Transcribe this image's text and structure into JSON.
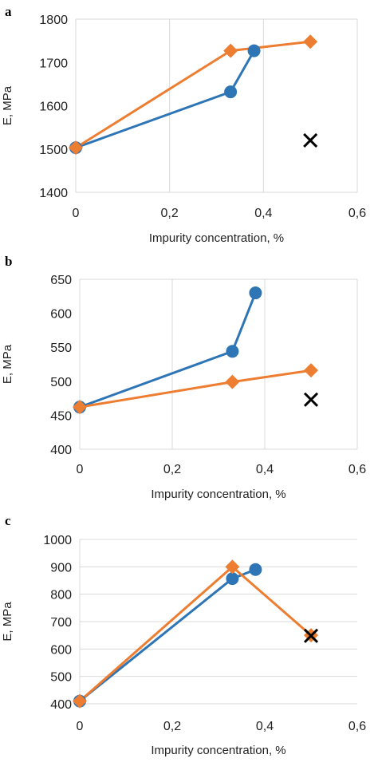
{
  "chart_data": [
    {
      "panel": "a",
      "type": "line",
      "xlabel": "Impurity concentration, %",
      "ylabel": "E, MPa",
      "xlim": [
        0,
        0.6
      ],
      "ylim": [
        1400,
        1800
      ],
      "x_ticks": [
        "0",
        "0,2",
        "0,4",
        "0,6"
      ],
      "y_ticks": [
        "1400",
        "1500",
        "1600",
        "1700",
        "1800"
      ],
      "grid": "vertical",
      "series": [
        {
          "color": "#2e75b6",
          "marker": "circle",
          "x": [
            0,
            0.33,
            0.38
          ],
          "y": [
            1503,
            1632,
            1727
          ]
        },
        {
          "color": "#ed7d31",
          "marker": "diamond",
          "x": [
            0,
            0.33,
            0.5
          ],
          "y": [
            1503,
            1727,
            1748
          ]
        },
        {
          "color": "#000000",
          "marker": "x",
          "x": [
            0.5
          ],
          "y": [
            1520
          ]
        }
      ]
    },
    {
      "panel": "b",
      "type": "line",
      "xlabel": "Impurity concentration, %",
      "ylabel": "E, MPa",
      "xlim": [
        0,
        0.6
      ],
      "ylim": [
        400,
        650
      ],
      "x_ticks": [
        "0",
        "0,2",
        "0,4",
        "0,6"
      ],
      "y_ticks": [
        "400",
        "450",
        "500",
        "550",
        "600",
        "650"
      ],
      "grid": "vertical",
      "series": [
        {
          "color": "#2e75b6",
          "marker": "circle",
          "x": [
            0,
            0.33,
            0.38
          ],
          "y": [
            462,
            544,
            630
          ]
        },
        {
          "color": "#ed7d31",
          "marker": "diamond",
          "x": [
            0,
            0.33,
            0.5
          ],
          "y": [
            462,
            499,
            516
          ]
        },
        {
          "color": "#000000",
          "marker": "x",
          "x": [
            0.5
          ],
          "y": [
            473
          ]
        }
      ]
    },
    {
      "panel": "c",
      "type": "line",
      "xlabel": "Impurity concentration, %",
      "ylabel": "E, MPa",
      "xlim": [
        0,
        0.6
      ],
      "ylim": [
        400,
        1000
      ],
      "x_ticks": [
        "0",
        "0,2",
        "0,4",
        "0,6"
      ],
      "y_ticks": [
        "400",
        "500",
        "600",
        "700",
        "800",
        "900",
        "1000"
      ],
      "grid": "horizontal",
      "series": [
        {
          "color": "#2e75b6",
          "marker": "circle",
          "x": [
            0,
            0.33,
            0.38
          ],
          "y": [
            410,
            857,
            890
          ]
        },
        {
          "color": "#ed7d31",
          "marker": "diamond",
          "x": [
            0,
            0.33,
            0.5
          ],
          "y": [
            410,
            900,
            650
          ]
        },
        {
          "color": "#000000",
          "marker": "x",
          "x": [
            0.5
          ],
          "y": [
            648
          ]
        }
      ]
    }
  ]
}
